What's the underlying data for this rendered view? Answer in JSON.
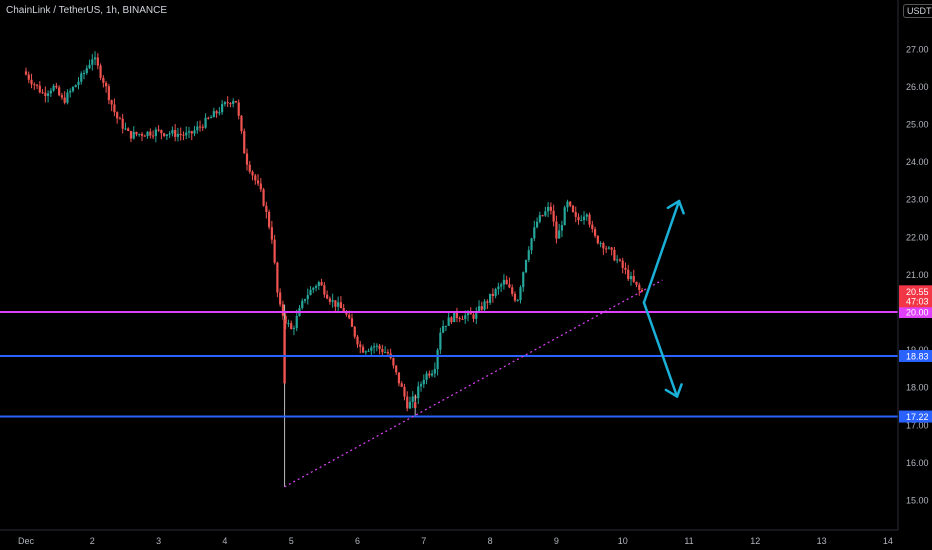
{
  "header": {
    "title": "ChainLink / TetherUS, 1h, BINANCE",
    "currency_badge": "USDT"
  },
  "chart_data": {
    "type": "candlestick",
    "symbol": "ChainLink / TetherUS",
    "interval": "1h",
    "exchange": "BINANCE",
    "x_tick_labels": [
      "Dec",
      "2",
      "3",
      "4",
      "5",
      "6",
      "7",
      "8",
      "9",
      "10",
      "11",
      "12",
      "13",
      "14"
    ],
    "y_tick_labels": [
      "15.00",
      "16.00",
      "17.00",
      "18.00",
      "19.00",
      "20.00",
      "21.00",
      "22.00",
      "23.00",
      "24.00",
      "25.00",
      "26.00",
      "27.00"
    ],
    "ylim": [
      14.7,
      27.6
    ],
    "price_path": [
      {
        "day": 0.0,
        "price": 26.4
      },
      {
        "day": 0.3,
        "price": 25.8
      },
      {
        "day": 0.45,
        "price": 26.0
      },
      {
        "day": 0.6,
        "price": 25.6
      },
      {
        "day": 0.9,
        "price": 26.3
      },
      {
        "day": 1.05,
        "price": 26.8
      },
      {
        "day": 1.2,
        "price": 26.2
      },
      {
        "day": 1.4,
        "price": 25.2
      },
      {
        "day": 1.6,
        "price": 24.7
      },
      {
        "day": 2.0,
        "price": 24.8
      },
      {
        "day": 2.5,
        "price": 24.7
      },
      {
        "day": 2.85,
        "price": 25.2
      },
      {
        "day": 3.1,
        "price": 25.6
      },
      {
        "day": 3.2,
        "price": 25.7
      },
      {
        "day": 3.35,
        "price": 24.1
      },
      {
        "day": 3.6,
        "price": 23.1
      },
      {
        "day": 3.75,
        "price": 22.0
      },
      {
        "day": 3.85,
        "price": 20.2
      },
      {
        "day": 3.95,
        "price": 19.8
      },
      {
        "day": 4.05,
        "price": 19.5
      },
      {
        "day": 4.25,
        "price": 20.4
      },
      {
        "day": 4.45,
        "price": 20.8
      },
      {
        "day": 4.65,
        "price": 20.3
      },
      {
        "day": 4.85,
        "price": 20.0
      },
      {
        "day": 5.1,
        "price": 19.0
      },
      {
        "day": 5.3,
        "price": 19.1
      },
      {
        "day": 5.5,
        "price": 18.9
      },
      {
        "day": 5.7,
        "price": 18.0
      },
      {
        "day": 5.8,
        "price": 17.5
      },
      {
        "day": 5.9,
        "price": 17.7
      },
      {
        "day": 6.05,
        "price": 18.3
      },
      {
        "day": 6.2,
        "price": 18.5
      },
      {
        "day": 6.3,
        "price": 19.6
      },
      {
        "day": 6.5,
        "price": 19.9
      },
      {
        "day": 6.8,
        "price": 19.9
      },
      {
        "day": 7.0,
        "price": 20.3
      },
      {
        "day": 7.25,
        "price": 20.8
      },
      {
        "day": 7.45,
        "price": 20.3
      },
      {
        "day": 7.6,
        "price": 21.6
      },
      {
        "day": 7.75,
        "price": 22.4
      },
      {
        "day": 7.95,
        "price": 22.8
      },
      {
        "day": 8.05,
        "price": 21.9
      },
      {
        "day": 8.2,
        "price": 22.9
      },
      {
        "day": 8.35,
        "price": 22.4
      },
      {
        "day": 8.5,
        "price": 22.7
      },
      {
        "day": 8.6,
        "price": 22.0
      },
      {
        "day": 8.75,
        "price": 21.8
      },
      {
        "day": 8.95,
        "price": 21.4
      },
      {
        "day": 9.15,
        "price": 20.9
      },
      {
        "day": 9.3,
        "price": 20.55
      }
    ],
    "key_candles": [
      {
        "day": 3.9,
        "high": 20.2,
        "low": 15.35,
        "open": 19.8,
        "close": 18.1
      },
      {
        "day": 5.87,
        "high": 17.8,
        "low": 17.25,
        "open": 17.6,
        "close": 17.45
      }
    ],
    "horizontal_levels": [
      {
        "price": 20.0,
        "label": "20.00",
        "color": "#e040fb"
      },
      {
        "price": 18.83,
        "label": "18.83",
        "color": "#2962ff"
      },
      {
        "price": 17.22,
        "label": "17.22",
        "color": "#2962ff"
      }
    ],
    "trendline": {
      "start": {
        "day": 3.9,
        "price": 15.35
      },
      "end": {
        "day": 9.6,
        "price": 20.85
      },
      "color": "#e040fb",
      "style": "dotted"
    },
    "last_price": {
      "value": "20.55",
      "countdown": "47:03",
      "color": "#f23645"
    },
    "projection_arrows": [
      {
        "from": {
          "day": 9.32,
          "price": 20.25
        },
        "to": {
          "day": 9.85,
          "price": 22.95
        },
        "color": "#1ab0d8"
      },
      {
        "from": {
          "day": 9.32,
          "price": 20.25
        },
        "to": {
          "day": 9.82,
          "price": 17.75
        },
        "color": "#1ab0d8"
      }
    ],
    "up_color": "#26a69a",
    "down_color": "#ef5350",
    "grid": false,
    "legend": "none"
  }
}
